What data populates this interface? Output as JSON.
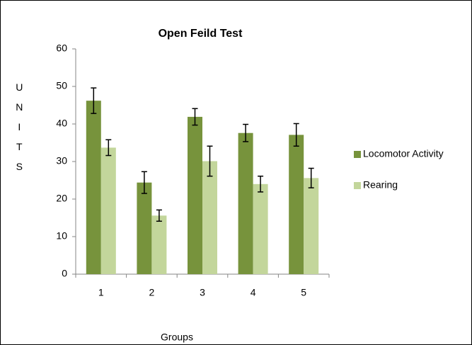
{
  "chart_data": {
    "type": "bar",
    "title": "Open Feild Test",
    "x_label": "Groups",
    "y_label": "UNITS",
    "categories": [
      "1",
      "2",
      "3",
      "4",
      "5"
    ],
    "series": [
      {
        "name": "Locomotor Activity",
        "color": "#77933c",
        "values": [
          46.2,
          24.4,
          41.9,
          37.6,
          37.1
        ],
        "errors": [
          3.4,
          2.9,
          2.2,
          2.3,
          3.0
        ]
      },
      {
        "name": "Rearing",
        "color": "#c3d69b",
        "values": [
          33.7,
          15.6,
          30.1,
          24.0,
          25.6
        ],
        "errors": [
          2.1,
          1.5,
          4.0,
          2.1,
          2.6
        ]
      }
    ],
    "ylim": [
      0,
      60
    ],
    "yticks": [
      0,
      10,
      20,
      30,
      40,
      50,
      60
    ],
    "grid": false,
    "legend": "right"
  }
}
